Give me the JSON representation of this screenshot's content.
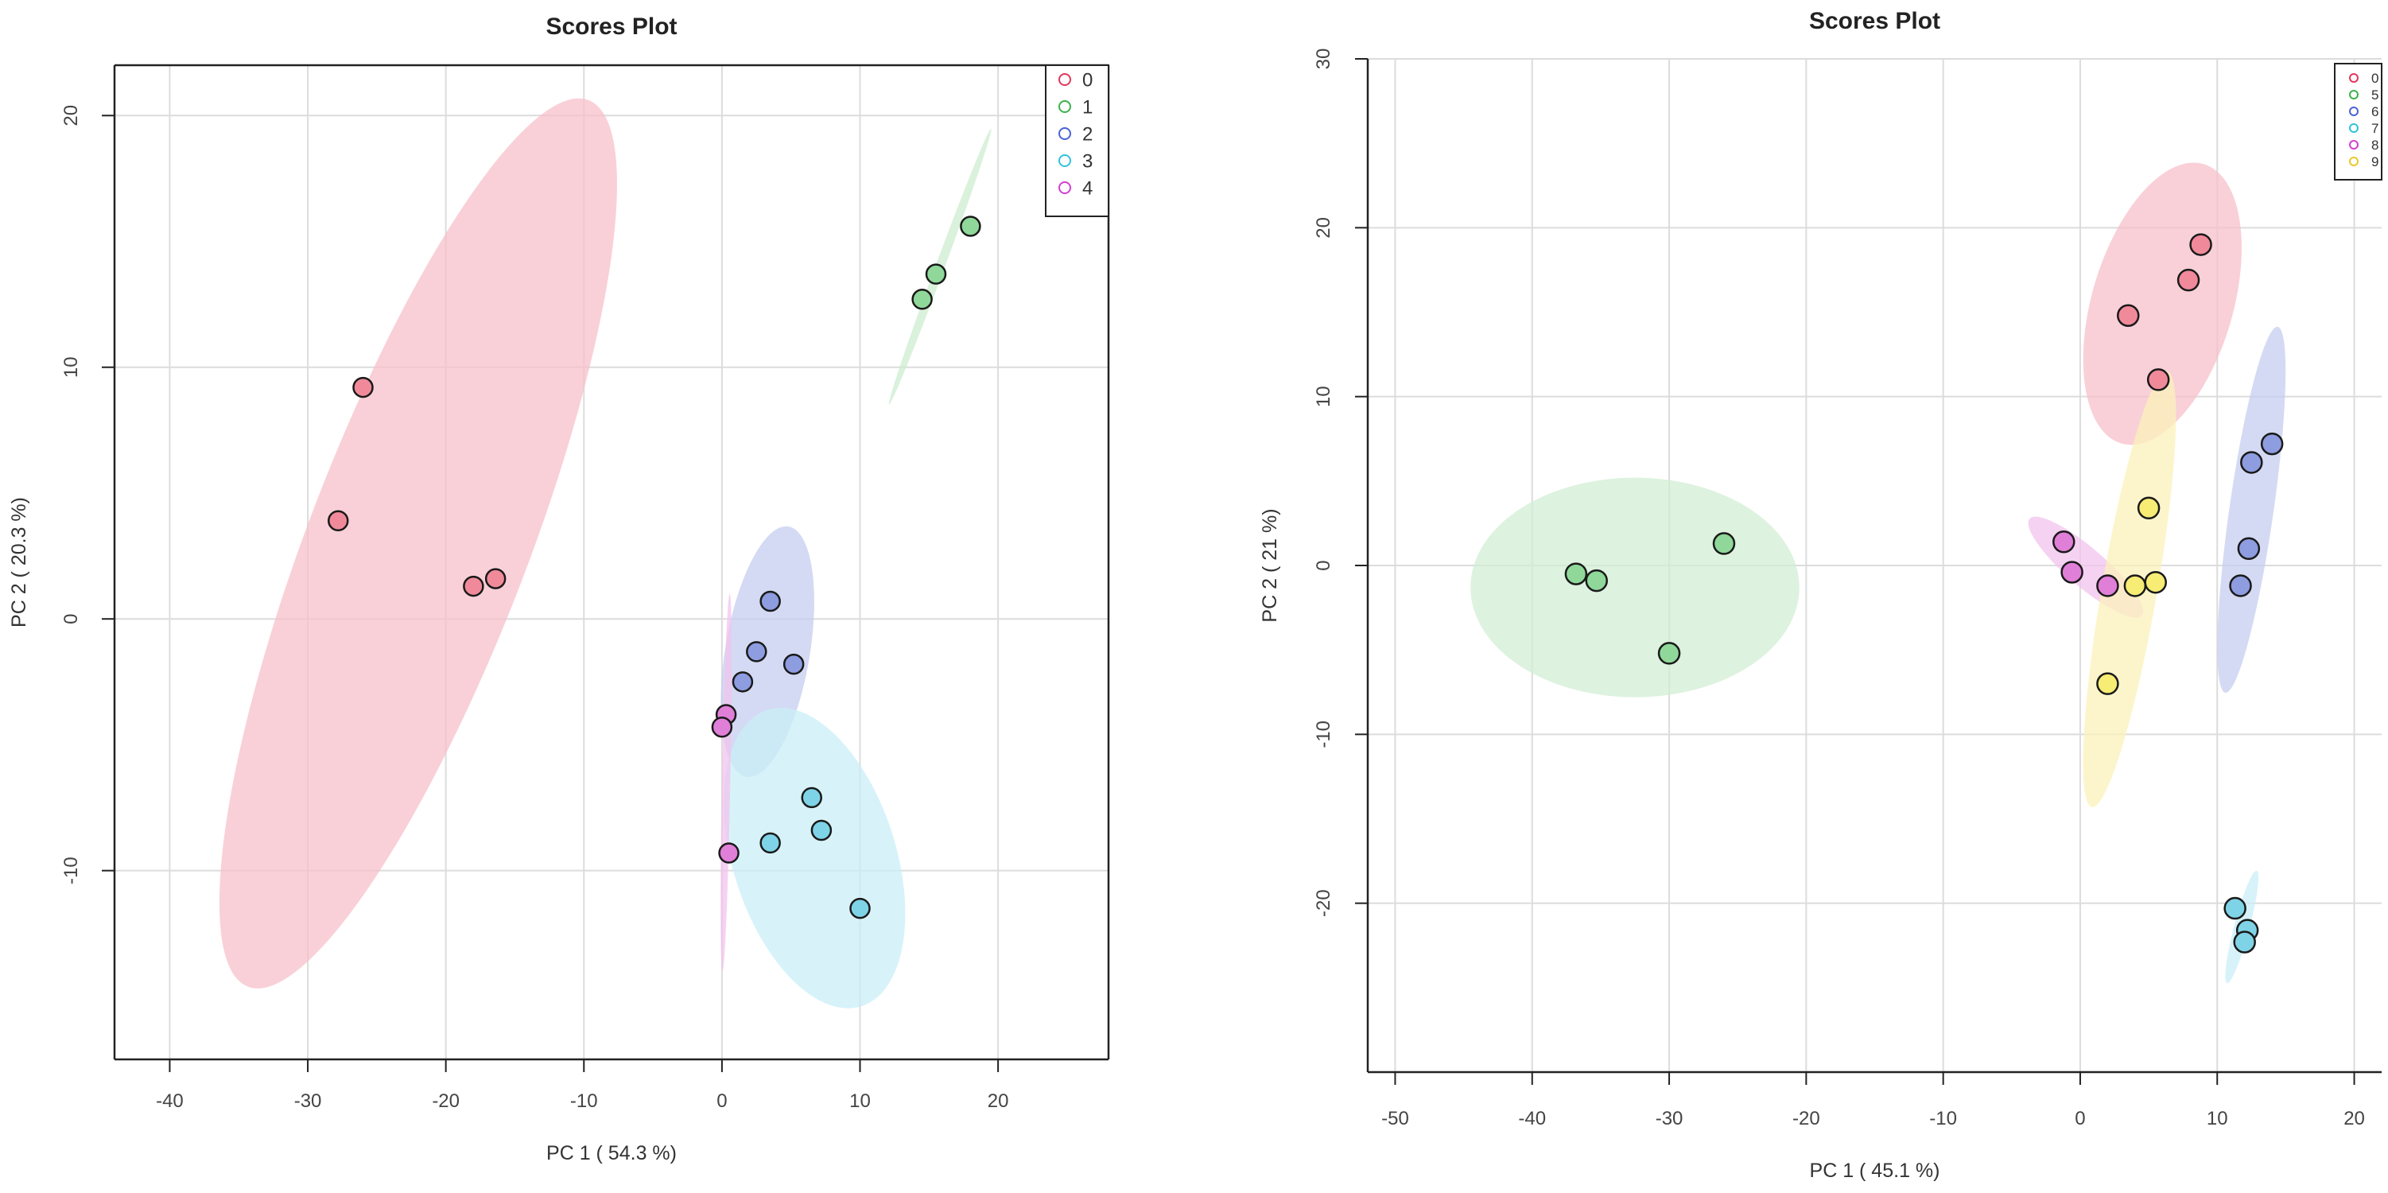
{
  "chart_data": [
    {
      "type": "scatter",
      "title": "Scores Plot",
      "xlabel": "PC 1 ( 54.3 %)",
      "ylabel": "PC 2 ( 20.3 %)",
      "xlim": [
        -44,
        28
      ],
      "ylim": [
        -17.5,
        22
      ],
      "xticks": [
        -40,
        -30,
        -20,
        -10,
        0,
        10,
        20
      ],
      "yticks": [
        -10,
        0,
        10,
        20
      ],
      "grid": true,
      "legend_position": "top-right",
      "series": [
        {
          "name": "0",
          "color": "#e3365a",
          "fill": "#f08a9a",
          "ellipse_fill": "#f7c0cb",
          "points": [
            [
              -26,
              9.2
            ],
            [
              -27.8,
              3.9
            ],
            [
              -18,
              1.3
            ],
            [
              -16.4,
              1.6
            ]
          ],
          "ellipse": {
            "cx": -22,
            "cy": 3,
            "rx": 21.5,
            "ry": 6,
            "angle_deg": 55
          }
        },
        {
          "name": "1",
          "color": "#3cb24a",
          "fill": "#8fd89a",
          "ellipse_fill": "#cdeccf",
          "points": [
            [
              14.5,
              12.7
            ],
            [
              15.5,
              13.7
            ],
            [
              18,
              15.6
            ]
          ],
          "ellipse": {
            "cx": 15.8,
            "cy": 14,
            "rx": 6.6,
            "ry": 0.25,
            "angle_deg": 56
          }
        },
        {
          "name": "2",
          "color": "#4a62d6",
          "fill": "#8e9ce0",
          "ellipse_fill": "#c6cdef",
          "points": [
            [
              3.5,
              0.7
            ],
            [
              2.5,
              -1.3
            ],
            [
              5.2,
              -1.8
            ],
            [
              1.5,
              -2.5
            ]
          ],
          "ellipse": {
            "cx": 3.3,
            "cy": -1.3,
            "rx": 5.2,
            "ry": 2.8,
            "angle_deg": 73
          }
        },
        {
          "name": "3",
          "color": "#2fc3dc",
          "fill": "#7fd3e6",
          "ellipse_fill": "#c9eff7",
          "points": [
            [
              6.5,
              -7.1
            ],
            [
              7.2,
              -8.4
            ],
            [
              3.5,
              -8.9
            ],
            [
              10,
              -11.5
            ]
          ],
          "ellipse": {
            "cx": 6.7,
            "cy": -9.5,
            "rx": 6.8,
            "ry": 4.7,
            "angle_deg": -60
          }
        },
        {
          "name": "4",
          "color": "#d33fd3",
          "fill": "#e07fd8",
          "ellipse_fill": "#f1c3ee",
          "points": [
            [
              0.3,
              -3.8
            ],
            [
              0,
              -4.3
            ],
            [
              0.5,
              -9.3
            ]
          ],
          "ellipse": {
            "cx": 0.3,
            "cy": -6.5,
            "rx": 7.5,
            "ry": 0.3,
            "angle_deg": 88
          }
        }
      ]
    },
    {
      "type": "scatter",
      "title": "Scores Plot",
      "xlabel": "PC 1 ( 45.1 %)",
      "ylabel": "PC 2 ( 21 %)",
      "xlim": [
        -52,
        22
      ],
      "ylim": [
        -30,
        30
      ],
      "xticks": [
        -50,
        -40,
        -30,
        -20,
        -10,
        0,
        10,
        20
      ],
      "yticks": [
        -20,
        -10,
        0,
        10,
        20,
        30
      ],
      "grid": true,
      "legend_position": "top-right",
      "series": [
        {
          "name": "0",
          "color": "#e3365a",
          "fill": "#f08a9a",
          "ellipse_fill": "#f7c0cb",
          "points": [
            [
              8.8,
              19
            ],
            [
              7.9,
              16.9
            ],
            [
              3.5,
              14.8
            ],
            [
              5.7,
              11
            ]
          ],
          "ellipse": {
            "cx": 6,
            "cy": 15.5,
            "rx": 8.8,
            "ry": 5,
            "angle_deg": 70
          }
        },
        {
          "name": "5",
          "color": "#3cb24a",
          "fill": "#8fd89a",
          "ellipse_fill": "#d2edd4",
          "points": [
            [
              -36.8,
              -0.5
            ],
            [
              -35.3,
              -0.9
            ],
            [
              -30,
              -5.2
            ],
            [
              -26,
              1.3
            ]
          ],
          "ellipse": {
            "cx": -32.5,
            "cy": -1.3,
            "rx": 12,
            "ry": 6.5,
            "angle_deg": 0
          }
        },
        {
          "name": "6",
          "color": "#4a62d6",
          "fill": "#8e9ce0",
          "ellipse_fill": "#c6cdef",
          "points": [
            [
              12.5,
              6.1
            ],
            [
              14,
              7.2
            ],
            [
              12.3,
              1
            ],
            [
              11.7,
              -1.2
            ]
          ],
          "ellipse": {
            "cx": 12.5,
            "cy": 3.3,
            "rx": 11,
            "ry": 1.6,
            "angle_deg": 80
          }
        },
        {
          "name": "7",
          "color": "#2fc3dc",
          "fill": "#7fd3e6",
          "ellipse_fill": "#c9eff7",
          "points": [
            [
              11.3,
              -20.3
            ],
            [
              12.2,
              -21.6
            ],
            [
              12,
              -22.3
            ]
          ],
          "ellipse": {
            "cx": 11.8,
            "cy": -21.4,
            "rx": 3.5,
            "ry": 0.55,
            "angle_deg": 72
          }
        },
        {
          "name": "8",
          "color": "#d33fd3",
          "fill": "#e07fd8",
          "ellipse_fill": "#f1c3ee",
          "points": [
            [
              -1.2,
              1.4
            ],
            [
              -0.6,
              -0.4
            ],
            [
              2,
              -1.2
            ]
          ],
          "ellipse": {
            "cx": 0.4,
            "cy": -0.1,
            "rx": 5,
            "ry": 1.2,
            "angle_deg": -35
          }
        },
        {
          "name": "9",
          "color": "#e8c92a",
          "fill": "#f7ec74",
          "ellipse_fill": "#fbf1bb",
          "points": [
            [
              5,
              3.4
            ],
            [
              4,
              -1.2
            ],
            [
              5.5,
              -1
            ],
            [
              2,
              -7
            ]
          ],
          "ellipse": {
            "cx": 3.6,
            "cy": -1.4,
            "rx": 13.2,
            "ry": 2.0,
            "angle_deg": 78
          }
        }
      ]
    }
  ]
}
